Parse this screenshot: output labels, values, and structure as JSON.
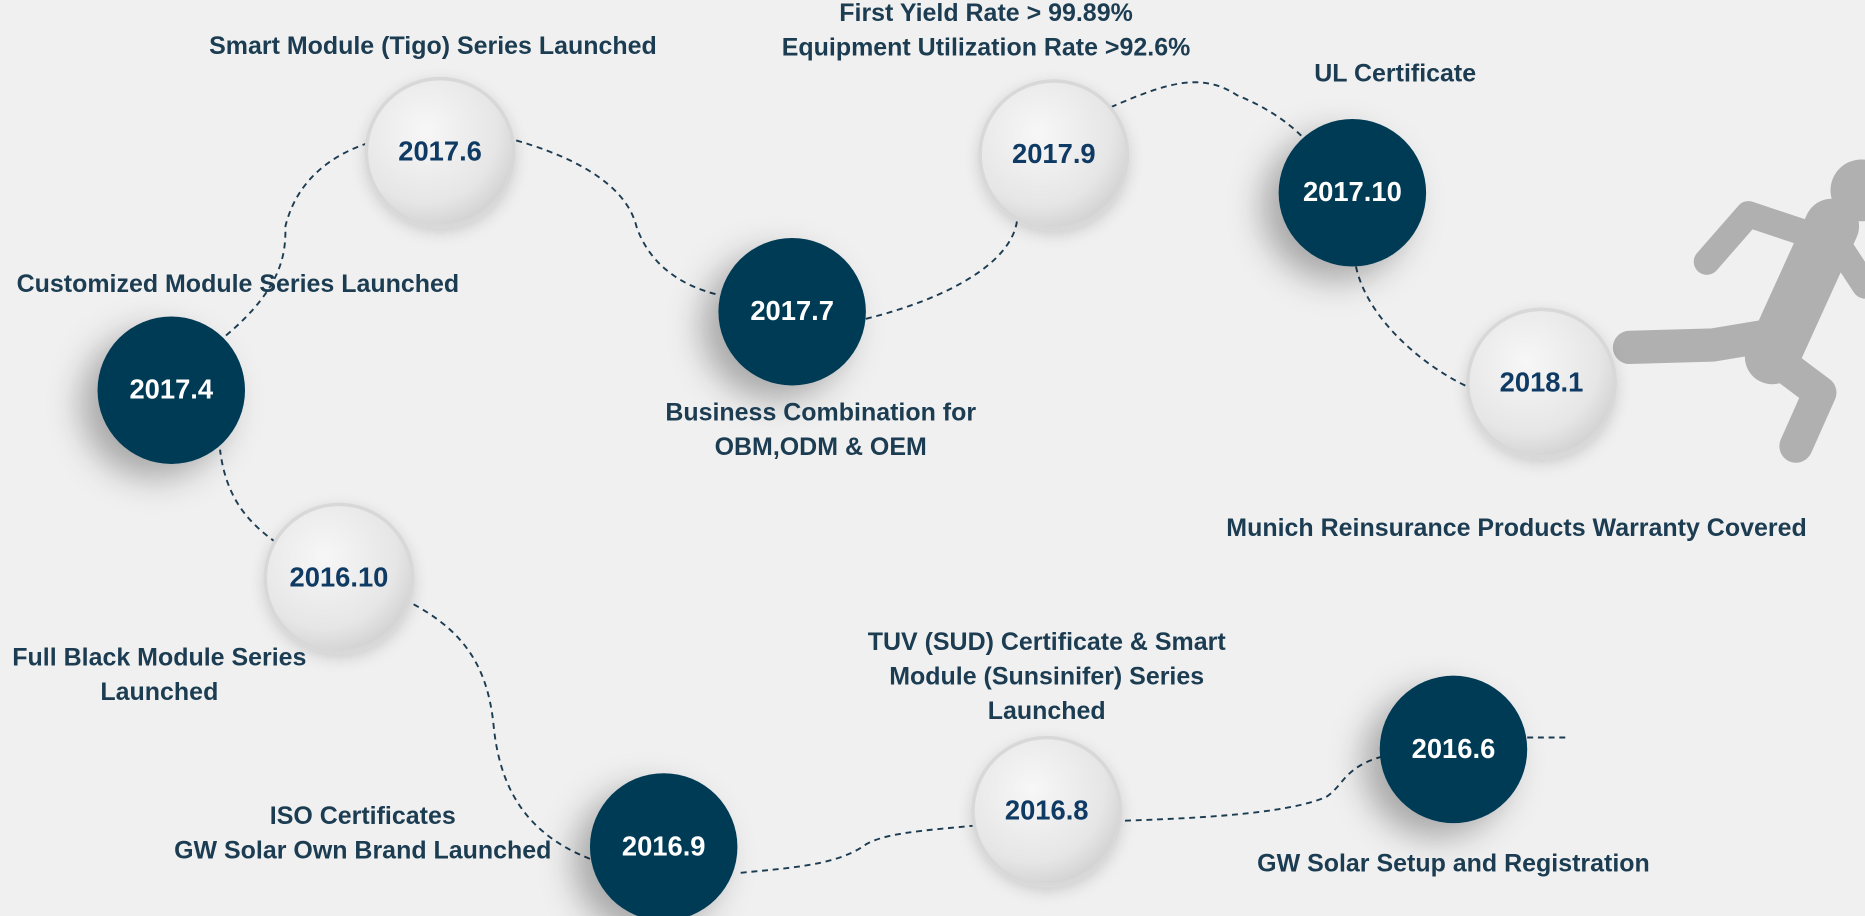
{
  "milestones": [
    {
      "date": "2016.6",
      "caption": [
        "GW Solar Setup and Registration"
      ]
    },
    {
      "date": "2016.8",
      "caption": [
        "TUV (SUD) Certificate  & Smart",
        "Module (Sunsinifer) Series",
        "Launched"
      ]
    },
    {
      "date": "2016.9",
      "caption": [
        "ISO Certificates",
        "GW Solar Own Brand Launched"
      ]
    },
    {
      "date": "2016.10",
      "caption": [
        "Full Black Module Series",
        "Launched"
      ]
    },
    {
      "date": "2017.4",
      "caption": [
        "Customized Module Series Launched"
      ]
    },
    {
      "date": "2017.6",
      "caption": [
        "Smart Module (Tigo) Series Launched"
      ]
    },
    {
      "date": "2017.7",
      "caption": [
        "Business Combination for",
        "OBM,ODM & OEM"
      ]
    },
    {
      "date": "2017.9",
      "caption": [
        "First Yield Rate > 99.89%",
        "Equipment Utilization Rate >92.6%"
      ]
    },
    {
      "date": "2017.10",
      "caption": [
        "UL Certificate"
      ]
    },
    {
      "date": "2018.1",
      "caption": [
        "Munich Reinsurance Products Warranty Covered"
      ]
    }
  ]
}
